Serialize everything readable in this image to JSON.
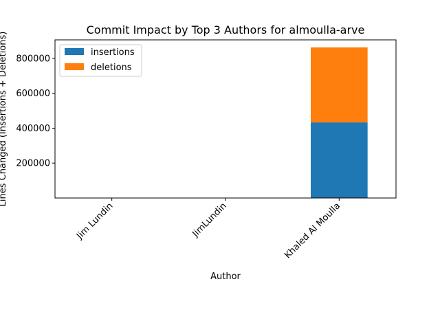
{
  "chart_data": {
    "type": "bar",
    "stacked": true,
    "title": "Commit Impact by Top 3 Authors for almoulla-arve",
    "xlabel": "Author",
    "ylabel": "Lines Changed (Insertions + Deletions)",
    "categories": [
      "Jim Lundin",
      "JimLundin",
      "Khaled Al Moulla"
    ],
    "series": [
      {
        "name": "insertions",
        "color": "#1f77b4",
        "values": [
          40,
          10,
          433000
        ]
      },
      {
        "name": "deletions",
        "color": "#ff7f0e",
        "values": [
          30,
          5,
          430000
        ]
      }
    ],
    "ylim": [
      0,
      906000
    ],
    "yticks": [
      200000,
      400000,
      600000,
      800000
    ],
    "ytick_labels": [
      "200000",
      "400000",
      "600000",
      "800000"
    ],
    "legend": "upper-left",
    "grid": false
  }
}
